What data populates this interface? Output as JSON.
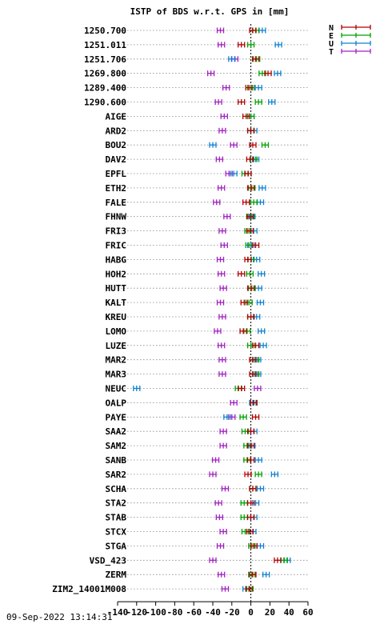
{
  "chart_data": {
    "type": "scatter",
    "title": "ISTP of BDS w.r.t. GPS in [mm]",
    "xlim": [
      -140,
      60
    ],
    "xticks": [
      -140,
      -120,
      -100,
      -80,
      -60,
      -40,
      -20,
      0,
      20,
      40,
      60
    ],
    "xtick_labels": [
      "-140",
      "-120",
      "-100",
      "-80",
      "-60",
      "-40",
      "-20",
      "0",
      "20",
      "40",
      "60"
    ],
    "grid": "dotted horizontal",
    "legend_position": "top-right",
    "categories": [
      "1250.700",
      "1251.011",
      "1251.706",
      "1269.800",
      "1289.400",
      "1290.600",
      "AIGE",
      "ARD2",
      "BOU2",
      "DAV2",
      "EPFL",
      "ETH2",
      "FALE",
      "FHNW",
      "FRI3",
      "FRIC",
      "HABG",
      "HOH2",
      "HUTT",
      "KALT",
      "KREU",
      "LOMO",
      "LUZE",
      "MAR2",
      "MAR3",
      "NEUC",
      "OALP",
      "PAYE",
      "SAA2",
      "SAM2",
      "SANB",
      "SAR2",
      "SCHA",
      "STA2",
      "STAB",
      "STCX",
      "STGA",
      "VSD_423",
      "ZERM",
      "ZIM2_14001M008"
    ],
    "series": [
      {
        "name": "N",
        "color": "#b00000",
        "values": [
          2,
          -10,
          5,
          18,
          -2,
          -10,
          -5,
          0,
          2,
          -1,
          -3,
          0,
          -5,
          -1,
          -1,
          5,
          -3,
          -10,
          0,
          -7,
          0,
          -8,
          5,
          2,
          2,
          -10,
          3,
          5,
          0,
          0,
          0,
          -3,
          2,
          0,
          0,
          -1,
          3,
          28,
          2,
          -2
        ]
      },
      {
        "name": "E",
        "color": "#00a000",
        "values": [
          5,
          0,
          6,
          12,
          0,
          8,
          0,
          0,
          15,
          3,
          -6,
          1,
          3,
          0,
          -3,
          -2,
          0,
          -1,
          1,
          -2,
          0,
          -4,
          0,
          5,
          5,
          -13,
          3,
          -8,
          -6,
          -4,
          -4,
          8,
          2,
          -7,
          -7,
          -6,
          1,
          35,
          1,
          -1
        ]
      },
      {
        "name": "U",
        "color": "#1080d0",
        "values": [
          12,
          29,
          -20,
          28,
          8,
          22,
          0,
          3,
          -40,
          5,
          -18,
          12,
          10,
          1,
          3,
          0,
          6,
          11,
          8,
          10,
          6,
          11,
          13,
          7,
          7,
          -120,
          2,
          -25,
          3,
          1,
          8,
          25,
          10,
          5,
          3,
          2,
          10,
          38,
          16,
          -5
        ]
      },
      {
        "name": "T",
        "color": "#a020c0",
        "values": [
          -32,
          -31,
          -17,
          -42,
          -26,
          -34,
          -28,
          -30,
          -18,
          -33,
          -23,
          -31,
          -36,
          -25,
          -30,
          -28,
          -32,
          -31,
          -29,
          -32,
          -30,
          -35,
          -31,
          -30,
          -30,
          7,
          -18,
          -20,
          -29,
          -29,
          -37,
          -40,
          -27,
          -34,
          -33,
          -29,
          -32,
          -40,
          -31,
          -27
        ]
      }
    ]
  },
  "footer": {
    "timestamp": "09-Sep-2022 13:14:31"
  }
}
